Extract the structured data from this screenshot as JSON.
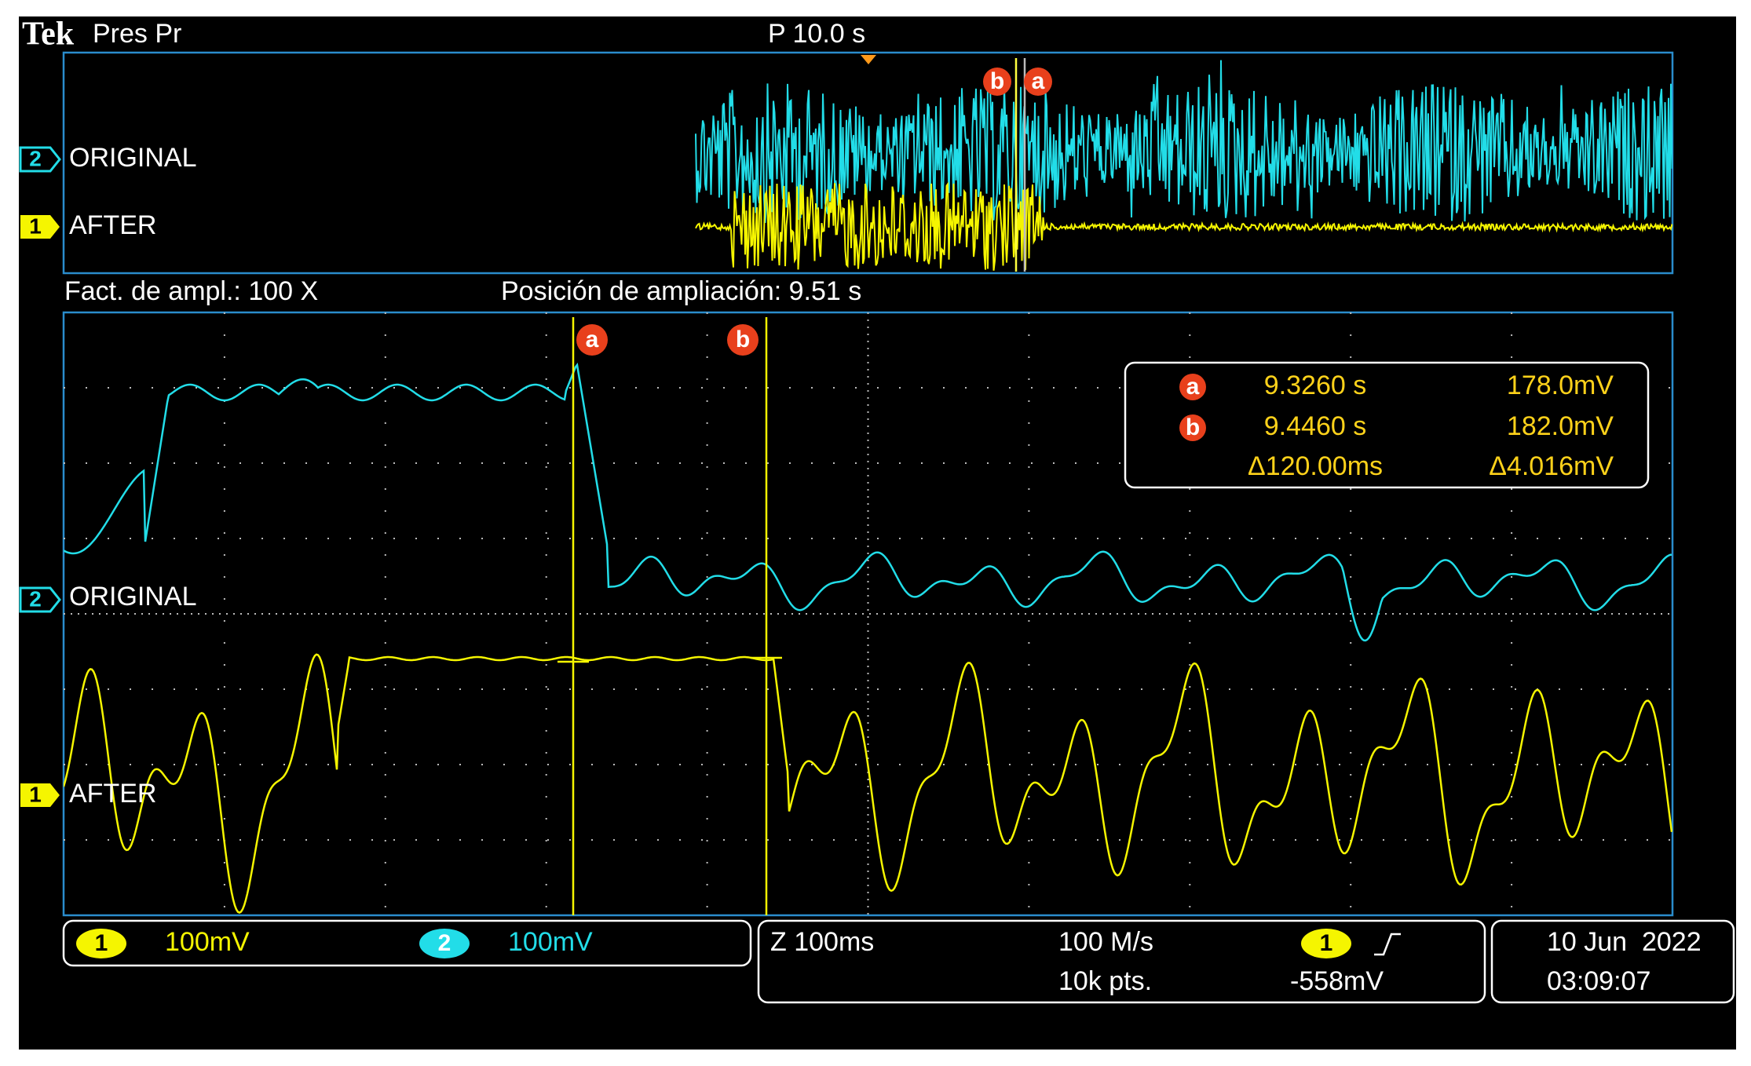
{
  "header": {
    "brand": "Tek",
    "mode": "Pres Pr",
    "trigger_position": "P 10.0 s"
  },
  "overview": {
    "channels": [
      {
        "number": "2",
        "label": "ORIGINAL"
      },
      {
        "number": "1",
        "label": "AFTER"
      }
    ],
    "cursors": [
      "b",
      "a"
    ]
  },
  "zoom_info": {
    "factor": "Fact. de ampl.: 100 X",
    "position": "Posición de ampliación: 9.51 s"
  },
  "zoom": {
    "channels": [
      {
        "number": "2",
        "label": "ORIGINAL"
      },
      {
        "number": "1",
        "label": "AFTER"
      }
    ],
    "cursors": [
      "a",
      "b"
    ]
  },
  "readout": {
    "rows": [
      {
        "cursor": "a",
        "time": "9.3260 s",
        "value": "178.0mV"
      },
      {
        "cursor": "b",
        "time": "9.4460 s",
        "value": "182.0mV"
      },
      {
        "time": "Δ120.00ms",
        "value": "Δ4.016mV"
      }
    ]
  },
  "status": {
    "channels": [
      {
        "number": "1",
        "scale": "100mV"
      },
      {
        "number": "2",
        "scale": "100mV"
      }
    ],
    "timebase": "Z 100ms",
    "sample_rate": "100 M/s",
    "record_length": "10k pts.",
    "trigger": {
      "source": "1",
      "level": "-558mV"
    },
    "date": "10 Jun  2022",
    "time": "03:09:07"
  }
}
